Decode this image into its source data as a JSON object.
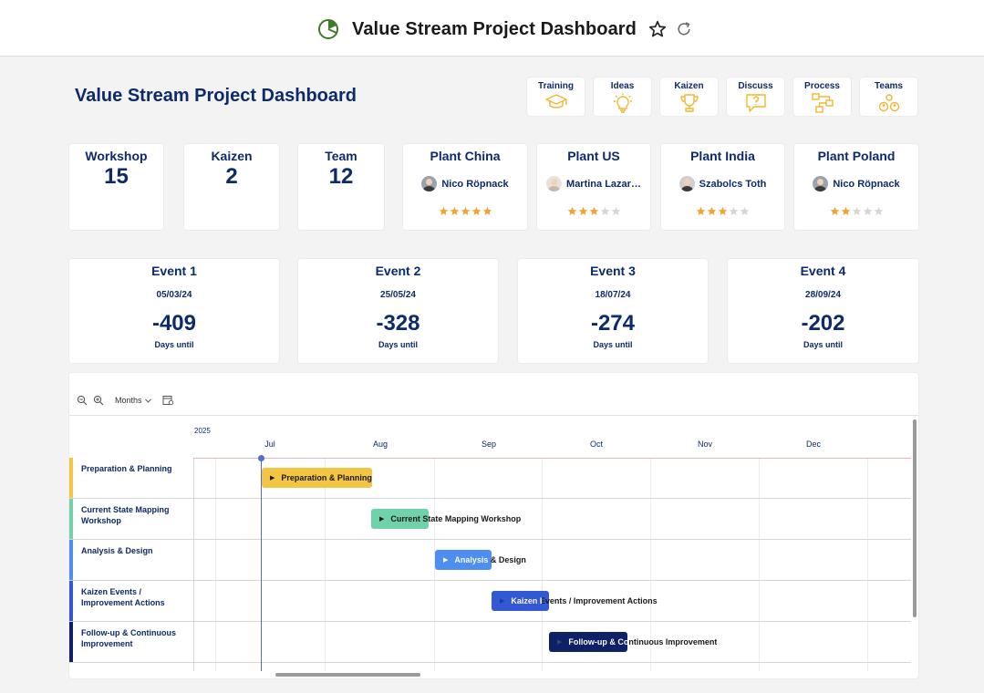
{
  "app": {
    "title": "Value Stream Project Dashboard",
    "icon": "pie-chart-icon"
  },
  "dashboard": {
    "title": "Value Stream Project Dashboard"
  },
  "nav": [
    {
      "label": "Training",
      "icon": "graduation-cap-icon"
    },
    {
      "label": "Ideas",
      "icon": "lightbulb-icon"
    },
    {
      "label": "Kaizen",
      "icon": "trophy-icon"
    },
    {
      "label": "Discuss",
      "icon": "question-chat-icon"
    },
    {
      "label": "Process",
      "icon": "process-flow-icon"
    },
    {
      "label": "Teams",
      "icon": "team-icon"
    }
  ],
  "kpis": [
    {
      "label": "Workshop",
      "value": "15"
    },
    {
      "label": "Kaizen",
      "value": "2"
    },
    {
      "label": "Team",
      "value": "12"
    }
  ],
  "plants": [
    {
      "label": "Plant China",
      "person": "Nico Röpnack",
      "rating": 5
    },
    {
      "label": "Plant US",
      "person": "Martina Lazar…",
      "rating": 3
    },
    {
      "label": "Plant India",
      "person": "Szabolcs Toth",
      "rating": 3
    },
    {
      "label": "Plant Poland",
      "person": "Nico Röpnack",
      "rating": 2
    }
  ],
  "events": [
    {
      "title": "Event 1",
      "date": "05/03/24",
      "days": "-409",
      "sub": "Days until"
    },
    {
      "title": "Event 2",
      "date": "25/05/24",
      "days": "-328",
      "sub": "Days until"
    },
    {
      "title": "Event 3",
      "date": "18/07/24",
      "days": "-274",
      "sub": "Days until"
    },
    {
      "title": "Event 4",
      "date": "28/09/24",
      "days": "-202",
      "sub": "Days until"
    }
  ],
  "gantt": {
    "view_label": "Months",
    "year": "2025",
    "months": [
      "Jul",
      "Aug",
      "Sep",
      "Oct",
      "Nov",
      "Dec"
    ],
    "rows": [
      {
        "label": "Preparation & Planning",
        "bar_label": "Preparation & Planning",
        "color": "#f4c542"
      },
      {
        "label": "Current State Mapping Workshop",
        "bar_label": "Current State Mapping Workshop",
        "color": "#6fd2a8"
      },
      {
        "label": "Analysis & Design",
        "bar_label": "Analysis & Design",
        "color": "#4d8ef0"
      },
      {
        "label": "Kaizen Events / Improvement Actions",
        "bar_label": "Kaizen Events / Improvement Actions",
        "color": "#3358d4"
      },
      {
        "label": "Follow-up & Continuous Improvement",
        "bar_label": "Follow-up & Continuous Improvement",
        "color": "#0f2166"
      }
    ]
  },
  "colors": {
    "accent": "#0d2a6b",
    "star": "#f0a533",
    "star_empty": "#d6d6d6",
    "nav_icon": "#f2b632"
  }
}
